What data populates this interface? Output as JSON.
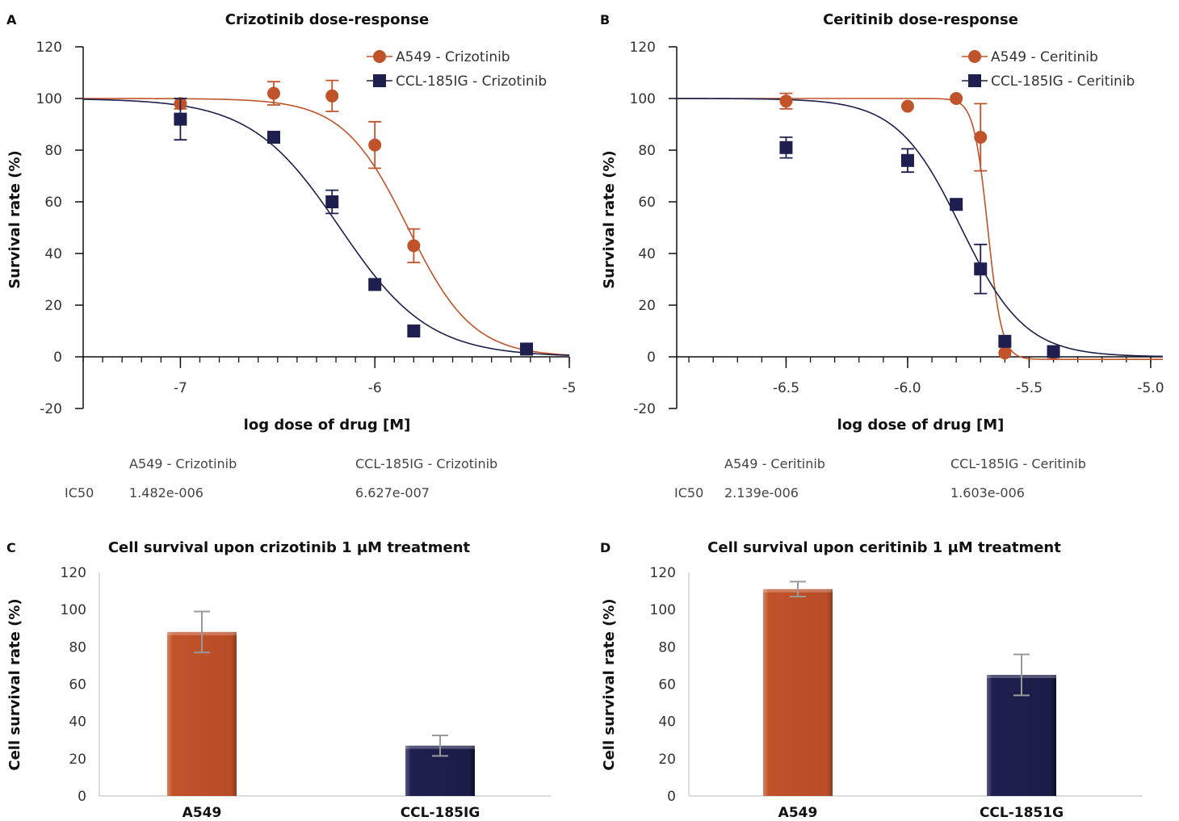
{
  "colors": {
    "orange": "#c0532a",
    "navy": "#1f1f4f",
    "axis": "#111111",
    "errorbar_gray": "#9a9a9a"
  },
  "chart_data": [
    {
      "id": "A",
      "panel_label": "A",
      "type": "scatter",
      "title": "Crizotinib dose-response",
      "xlabel": "log dose of drug [M]",
      "ylabel": "Survival rate (%)",
      "xlim": [
        -7.5,
        -5
      ],
      "ylim": [
        -20,
        120
      ],
      "xticks": [
        -7,
        -6,
        -5
      ],
      "xtick_labels": [
        "-7",
        "-6",
        "-5"
      ],
      "yticks": [
        -20,
        0,
        20,
        40,
        60,
        80,
        100,
        120
      ],
      "legend_position": "top-right",
      "series": [
        {
          "name": "A549 - Crizotinib",
          "marker": "circle",
          "color": "#c0532a",
          "points": [
            {
              "x": -7.0,
              "y": 98,
              "err": 2
            },
            {
              "x": -6.52,
              "y": 102,
              "err": 4.5
            },
            {
              "x": -6.22,
              "y": 101,
              "err": 6
            },
            {
              "x": -6.0,
              "y": 82,
              "err": 9
            },
            {
              "x": -5.8,
              "y": 43,
              "err": 6.5
            },
            {
              "x": -5.22,
              "y": 3,
              "err": 1.5
            }
          ],
          "fit": {
            "ic50_log": -5.83,
            "hill": 2.6,
            "top": 100,
            "bottom": 0
          }
        },
        {
          "name": "CCL-185IG - Crizotinib",
          "marker": "square",
          "color": "#1f1f4f",
          "points": [
            {
              "x": -7.0,
              "y": 92,
              "err": 8
            },
            {
              "x": -6.52,
              "y": 85,
              "err": 0
            },
            {
              "x": -6.22,
              "y": 60,
              "err": 4.5
            },
            {
              "x": -6.0,
              "y": 28,
              "err": 0
            },
            {
              "x": -5.8,
              "y": 10,
              "err": 0
            },
            {
              "x": -5.22,
              "y": 3,
              "err": 0
            }
          ],
          "fit": {
            "ic50_log": -6.18,
            "hill": 1.9,
            "top": 100,
            "bottom": 0
          }
        }
      ],
      "ic50_table": {
        "row_label": "IC50",
        "columns": [
          "A549 - Crizotinib",
          "CCL-185IG - Crizotinib"
        ],
        "values": [
          "1.482e-006",
          "6.627e-007"
        ]
      }
    },
    {
      "id": "B",
      "panel_label": "B",
      "type": "scatter",
      "title": "Ceritinib dose-response",
      "xlabel": "log dose of drug [M]",
      "ylabel": "Survival rate (%)",
      "xlim": [
        -6.95,
        -4.95
      ],
      "ylim": [
        -20,
        120
      ],
      "xticks": [
        -6.5,
        -6.0,
        -5.5,
        -5.0
      ],
      "xtick_labels": [
        "-6.5",
        "-6.0",
        "-5.5",
        "-5.0"
      ],
      "yticks": [
        -20,
        0,
        20,
        40,
        60,
        80,
        100,
        120
      ],
      "legend_position": "top-right",
      "series": [
        {
          "name": "A549 - Ceritinib",
          "marker": "circle",
          "color": "#c0532a",
          "points": [
            {
              "x": -6.5,
              "y": 99,
              "err": 3
            },
            {
              "x": -6.0,
              "y": 97,
              "err": 0
            },
            {
              "x": -5.8,
              "y": 100,
              "err": 0
            },
            {
              "x": -5.7,
              "y": 85,
              "err": 13
            },
            {
              "x": -5.6,
              "y": 1.5,
              "err": 0
            },
            {
              "x": -5.4,
              "y": 1.5,
              "err": 0
            }
          ],
          "fit": {
            "ic50_log": -5.67,
            "hill": 15,
            "top": 100,
            "bottom": -1
          }
        },
        {
          "name": "CCL-185IG - Ceritinib",
          "marker": "square",
          "color": "#1f1f4f",
          "points": [
            {
              "x": -6.5,
              "y": 81,
              "err": 4
            },
            {
              "x": -6.0,
              "y": 76,
              "err": 4.5
            },
            {
              "x": -5.8,
              "y": 59,
              "err": 2
            },
            {
              "x": -5.7,
              "y": 34,
              "err": 9.5
            },
            {
              "x": -5.6,
              "y": 6,
              "err": 0
            },
            {
              "x": -5.4,
              "y": 2,
              "err": 0
            }
          ],
          "fit": {
            "ic50_log": -5.78,
            "hill": 3.3,
            "top": 100,
            "bottom": 0
          }
        }
      ],
      "ic50_table": {
        "row_label": "IC50",
        "columns": [
          "A549 - Ceritinib",
          "CCL-185IG - Ceritinib"
        ],
        "values": [
          "2.139e-006",
          "1.603e-006"
        ]
      }
    },
    {
      "id": "C",
      "panel_label": "C",
      "type": "bar",
      "title": "Cell survival upon crizotinib 1 μM treatment",
      "xlabel": "",
      "ylabel": "Cell survival rate (%)",
      "ylim": [
        0,
        120
      ],
      "yticks": [
        0,
        20,
        40,
        60,
        80,
        100,
        120
      ],
      "categories": [
        "A549",
        "CCL-185IG"
      ],
      "values": [
        88,
        27
      ],
      "errors": [
        11,
        5.5
      ],
      "bar_colors": [
        "#c0532a",
        "#1f1f4f"
      ]
    },
    {
      "id": "D",
      "panel_label": "D",
      "type": "bar",
      "title": "Cell survival upon ceritinib 1 μM treatment",
      "xlabel": "",
      "ylabel": "Cell survival rate (%)",
      "ylim": [
        0,
        120
      ],
      "yticks": [
        0,
        20,
        40,
        60,
        80,
        100,
        120
      ],
      "categories": [
        "A549",
        "CCL-1851G"
      ],
      "values": [
        111,
        65
      ],
      "errors": [
        4,
        11
      ],
      "bar_colors": [
        "#c0532a",
        "#1f1f4f"
      ]
    }
  ]
}
